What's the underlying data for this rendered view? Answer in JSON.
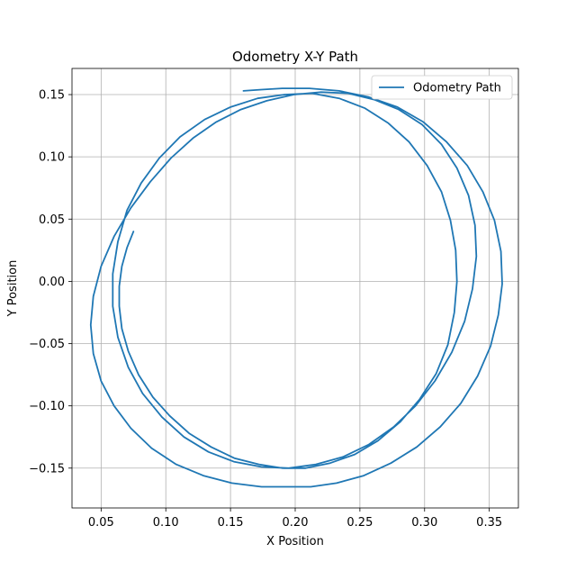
{
  "chart_data": {
    "type": "line",
    "title": "Odometry X-Y Path",
    "xlabel": "X Position",
    "ylabel": "Y Position",
    "xlim": [
      0.0275,
      0.3725
    ],
    "ylim": [
      -0.182,
      0.171
    ],
    "xticks": [
      0.05,
      0.1,
      0.15,
      0.2,
      0.25,
      0.3,
      0.35
    ],
    "xtick_labels": [
      "0.05",
      "0.10",
      "0.15",
      "0.20",
      "0.25",
      "0.30",
      "0.35"
    ],
    "yticks": [
      -0.15,
      -0.1,
      -0.05,
      0.0,
      0.05,
      0.1,
      0.15
    ],
    "ytick_labels": [
      "−0.15",
      "−0.10",
      "−0.05",
      "0.00",
      "0.05",
      "0.10",
      "0.15"
    ],
    "grid": true,
    "legend_position": "top-right",
    "series": [
      {
        "name": "Odometry Path",
        "color": "#1f77b4",
        "points": [
          [
            0.075,
            0.04
          ],
          [
            0.07,
            0.027
          ],
          [
            0.066,
            0.012
          ],
          [
            0.064,
            -0.004
          ],
          [
            0.064,
            -0.02
          ],
          [
            0.066,
            -0.038
          ],
          [
            0.071,
            -0.056
          ],
          [
            0.079,
            -0.075
          ],
          [
            0.09,
            -0.093
          ],
          [
            0.103,
            -0.108
          ],
          [
            0.118,
            -0.122
          ],
          [
            0.135,
            -0.133
          ],
          [
            0.153,
            -0.142
          ],
          [
            0.172,
            -0.147
          ],
          [
            0.19,
            -0.15
          ],
          [
            0.208,
            -0.15
          ],
          [
            0.227,
            -0.146
          ],
          [
            0.246,
            -0.139
          ],
          [
            0.264,
            -0.128
          ],
          [
            0.281,
            -0.113
          ],
          [
            0.296,
            -0.095
          ],
          [
            0.309,
            -0.074
          ],
          [
            0.318,
            -0.051
          ],
          [
            0.323,
            -0.025
          ],
          [
            0.325,
            0.0
          ],
          [
            0.324,
            0.025
          ],
          [
            0.32,
            0.049
          ],
          [
            0.313,
            0.072
          ],
          [
            0.302,
            0.093
          ],
          [
            0.288,
            0.112
          ],
          [
            0.272,
            0.127
          ],
          [
            0.254,
            0.139
          ],
          [
            0.234,
            0.147
          ],
          [
            0.213,
            0.151
          ],
          [
            0.192,
            0.15
          ],
          [
            0.171,
            0.147
          ],
          [
            0.15,
            0.14
          ],
          [
            0.13,
            0.13
          ],
          [
            0.111,
            0.116
          ],
          [
            0.095,
            0.099
          ],
          [
            0.081,
            0.079
          ],
          [
            0.07,
            0.057
          ],
          [
            0.063,
            0.032
          ],
          [
            0.059,
            0.006
          ],
          [
            0.059,
            -0.02
          ],
          [
            0.063,
            -0.045
          ],
          [
            0.071,
            -0.069
          ],
          [
            0.082,
            -0.09
          ],
          [
            0.097,
            -0.109
          ],
          [
            0.114,
            -0.125
          ],
          [
            0.133,
            -0.137
          ],
          [
            0.153,
            -0.145
          ],
          [
            0.174,
            -0.149
          ],
          [
            0.195,
            -0.15
          ],
          [
            0.216,
            -0.147
          ],
          [
            0.237,
            -0.141
          ],
          [
            0.257,
            -0.131
          ],
          [
            0.276,
            -0.117
          ],
          [
            0.293,
            -0.1
          ],
          [
            0.308,
            -0.08
          ],
          [
            0.321,
            -0.057
          ],
          [
            0.331,
            -0.032
          ],
          [
            0.337,
            -0.006
          ],
          [
            0.34,
            0.02
          ],
          [
            0.339,
            0.045
          ],
          [
            0.334,
            0.069
          ],
          [
            0.325,
            0.091
          ],
          [
            0.313,
            0.11
          ],
          [
            0.298,
            0.126
          ],
          [
            0.28,
            0.138
          ],
          [
            0.261,
            0.146
          ],
          [
            0.241,
            0.151
          ],
          [
            0.22,
            0.152
          ],
          [
            0.199,
            0.15
          ],
          [
            0.178,
            0.145
          ],
          [
            0.158,
            0.138
          ],
          [
            0.139,
            0.128
          ],
          [
            0.121,
            0.115
          ],
          [
            0.104,
            0.099
          ],
          [
            0.088,
            0.08
          ],
          [
            0.073,
            0.059
          ],
          [
            0.06,
            0.036
          ],
          [
            0.05,
            0.012
          ],
          [
            0.044,
            -0.012
          ],
          [
            0.042,
            -0.035
          ],
          [
            0.044,
            -0.058
          ],
          [
            0.05,
            -0.08
          ],
          [
            0.06,
            -0.1
          ],
          [
            0.073,
            -0.118
          ],
          [
            0.089,
            -0.134
          ],
          [
            0.108,
            -0.147
          ],
          [
            0.129,
            -0.156
          ],
          [
            0.151,
            -0.162
          ],
          [
            0.174,
            -0.165
          ],
          [
            0.197,
            -0.165
          ],
          [
            0.212,
            -0.165
          ],
          [
            0.232,
            -0.162
          ],
          [
            0.253,
            -0.156
          ],
          [
            0.274,
            -0.146
          ],
          [
            0.294,
            -0.133
          ],
          [
            0.312,
            -0.117
          ],
          [
            0.328,
            -0.098
          ],
          [
            0.341,
            -0.076
          ],
          [
            0.351,
            -0.052
          ],
          [
            0.357,
            -0.027
          ],
          [
            0.36,
            -0.002
          ],
          [
            0.359,
            0.024
          ],
          [
            0.354,
            0.049
          ],
          [
            0.345,
            0.072
          ],
          [
            0.333,
            0.093
          ],
          [
            0.317,
            0.112
          ],
          [
            0.299,
            0.128
          ],
          [
            0.279,
            0.14
          ],
          [
            0.257,
            0.148
          ],
          [
            0.234,
            0.153
          ],
          [
            0.211,
            0.155
          ],
          [
            0.19,
            0.155
          ],
          [
            0.174,
            0.154
          ],
          [
            0.16,
            0.153
          ]
        ]
      }
    ]
  }
}
